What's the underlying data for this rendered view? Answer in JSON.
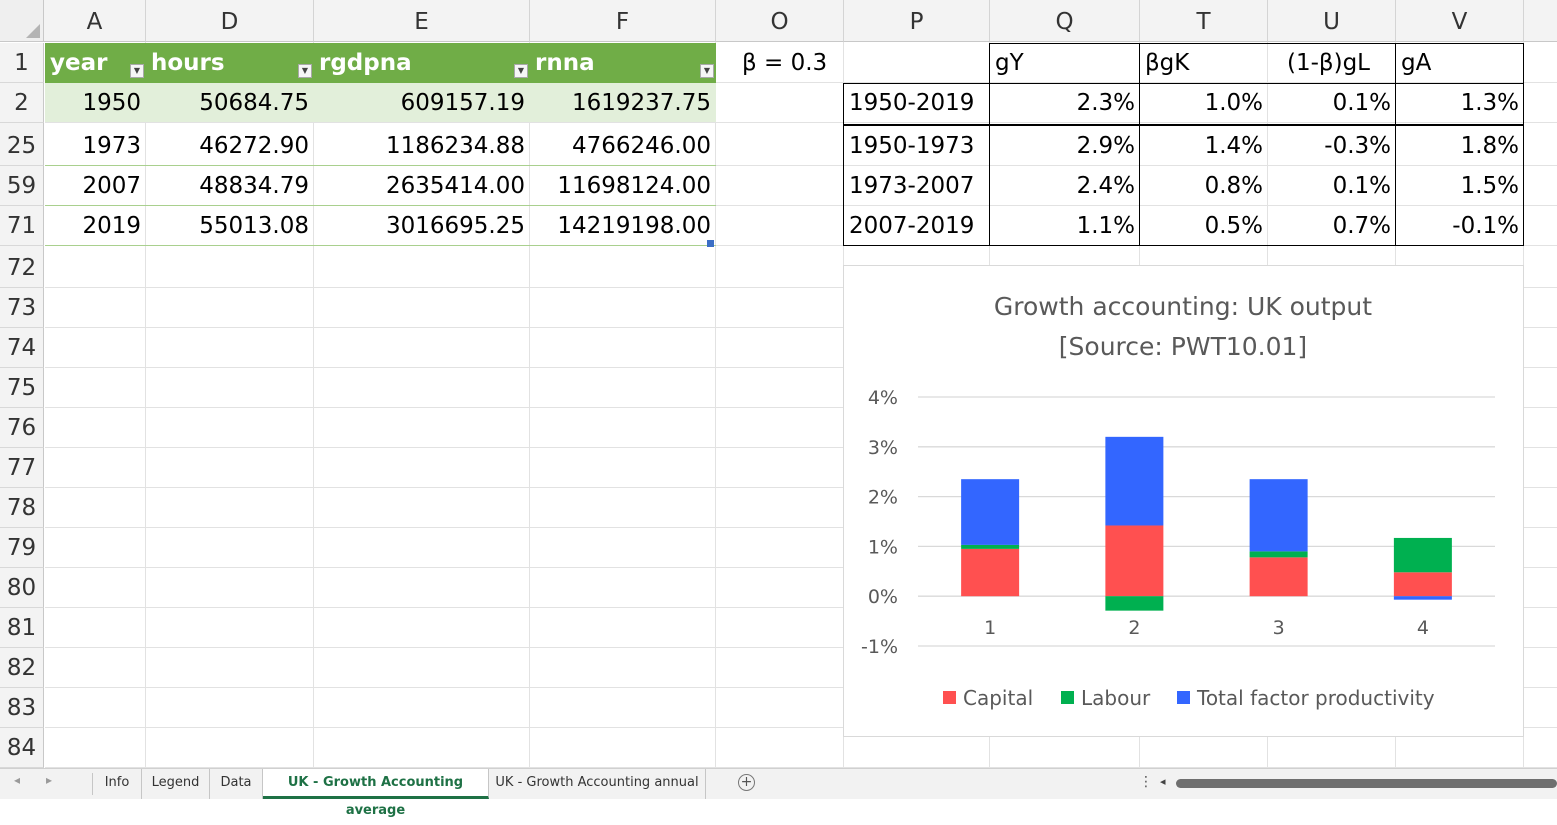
{
  "columns": [
    "A",
    "D",
    "E",
    "F",
    "O",
    "P",
    "Q",
    "T",
    "U",
    "V"
  ],
  "rows": [
    "1",
    "2",
    "25",
    "59",
    "71",
    "72",
    "73",
    "74",
    "75",
    "76",
    "77",
    "78",
    "79",
    "80",
    "81",
    "82",
    "83",
    "84"
  ],
  "table": {
    "headers": [
      "year",
      "hours",
      "rgdpna",
      "rnna"
    ],
    "filter_icon": "filter-dropdown-icon",
    "rows": [
      [
        "1950",
        "50684.75",
        "609157.19",
        "1619237.75"
      ],
      [
        "1973",
        "46272.90",
        "1186234.88",
        "4766246.00"
      ],
      [
        "2007",
        "48834.79",
        "2635414.00",
        "11698124.00"
      ],
      [
        "2019",
        "55013.08",
        "3016695.25",
        "14219198.00"
      ]
    ]
  },
  "beta_label": "β = 0.3",
  "growth": {
    "headers": [
      "gY",
      "βgK",
      "(1-β)gL",
      "gA"
    ],
    "rows": [
      [
        "1950-2019",
        "2.3%",
        "1.0%",
        "0.1%",
        "1.3%"
      ],
      [
        "1950-1973",
        "2.9%",
        "1.4%",
        "-0.3%",
        "1.8%"
      ],
      [
        "1973-2007",
        "2.4%",
        "0.8%",
        "0.1%",
        "1.5%"
      ],
      [
        "2007-2019",
        "1.1%",
        "0.5%",
        "0.7%",
        "-0.1%"
      ]
    ]
  },
  "chart_data": {
    "type": "bar",
    "stacked": true,
    "title": "Growth accounting: UK output",
    "subtitle": "[Source: PWT10.01]",
    "categories": [
      "1",
      "2",
      "3",
      "4"
    ],
    "series": [
      {
        "name": "Capital",
        "values": [
          0.95,
          1.42,
          0.78,
          0.48
        ],
        "color": "#ff5050"
      },
      {
        "name": "Labour",
        "values": [
          0.08,
          -0.29,
          0.12,
          0.69
        ],
        "color": "#00b050"
      },
      {
        "name": "Total factor productivity",
        "values": [
          1.32,
          1.78,
          1.45,
          -0.07
        ],
        "color": "#3366ff"
      }
    ],
    "ylim": [
      -1,
      4
    ],
    "yticks": [
      "4%",
      "3%",
      "2%",
      "1%",
      "0%",
      "-1%"
    ],
    "grid": true,
    "legend": "bottom"
  },
  "tabs": [
    {
      "label": "Info",
      "active": false
    },
    {
      "label": "Legend",
      "active": false
    },
    {
      "label": "Data",
      "active": false
    },
    {
      "label": "UK - Growth Accounting average",
      "active": true
    },
    {
      "label": "UK - Growth Accounting annual",
      "active": false
    }
  ],
  "nav": {
    "prev": "◂",
    "next": "▸",
    "add": "+",
    "more": "⋮",
    "scroll_left": "◂"
  }
}
